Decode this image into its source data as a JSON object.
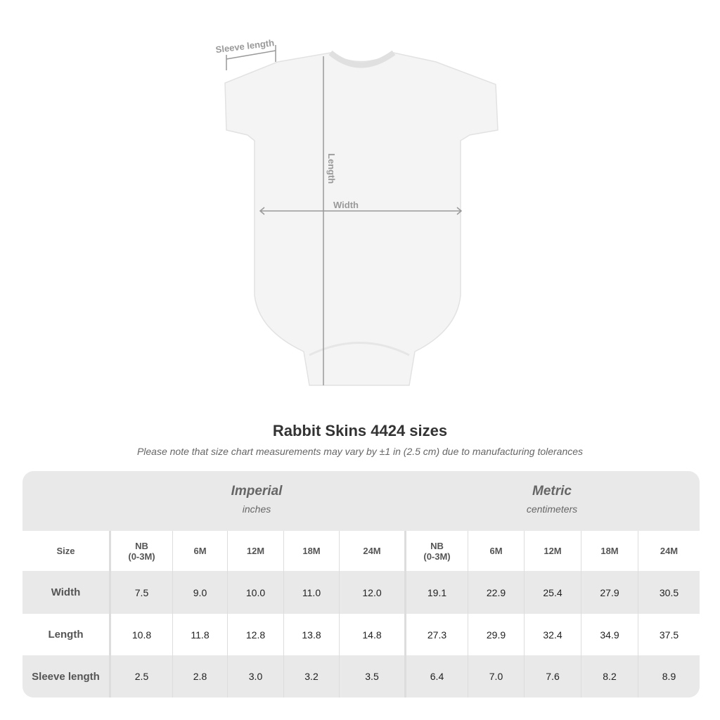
{
  "diagram": {
    "sleeve_label": "Sleeve length",
    "length_label": "Length",
    "width_label": "Width",
    "garment_color": "#f4f4f4"
  },
  "title": "Rabbit Skins 4424 sizes",
  "note": "Please note that size chart measurements may vary by ±1 in (2.5 cm) due to manufacturing tolerances",
  "table": {
    "imperial": {
      "label": "Imperial",
      "unit": "inches"
    },
    "metric": {
      "label": "Metric",
      "unit": "centimeters"
    },
    "size_label": "Size",
    "sizes": [
      "NB\n(0-3M)",
      "6M",
      "12M",
      "18M",
      "24M"
    ],
    "rows": [
      {
        "label": "Width",
        "imperial": [
          "7.5",
          "9.0",
          "10.0",
          "11.0",
          "12.0"
        ],
        "metric": [
          "19.1",
          "22.9",
          "25.4",
          "27.9",
          "30.5"
        ]
      },
      {
        "label": "Length",
        "imperial": [
          "10.8",
          "11.8",
          "12.8",
          "13.8",
          "14.8"
        ],
        "metric": [
          "27.3",
          "29.9",
          "32.4",
          "34.9",
          "37.5"
        ]
      },
      {
        "label": "Sleeve length",
        "imperial": [
          "2.5",
          "2.8",
          "3.0",
          "3.2",
          "3.5"
        ],
        "metric": [
          "6.4",
          "7.0",
          "7.6",
          "8.2",
          "8.9"
        ]
      }
    ]
  }
}
